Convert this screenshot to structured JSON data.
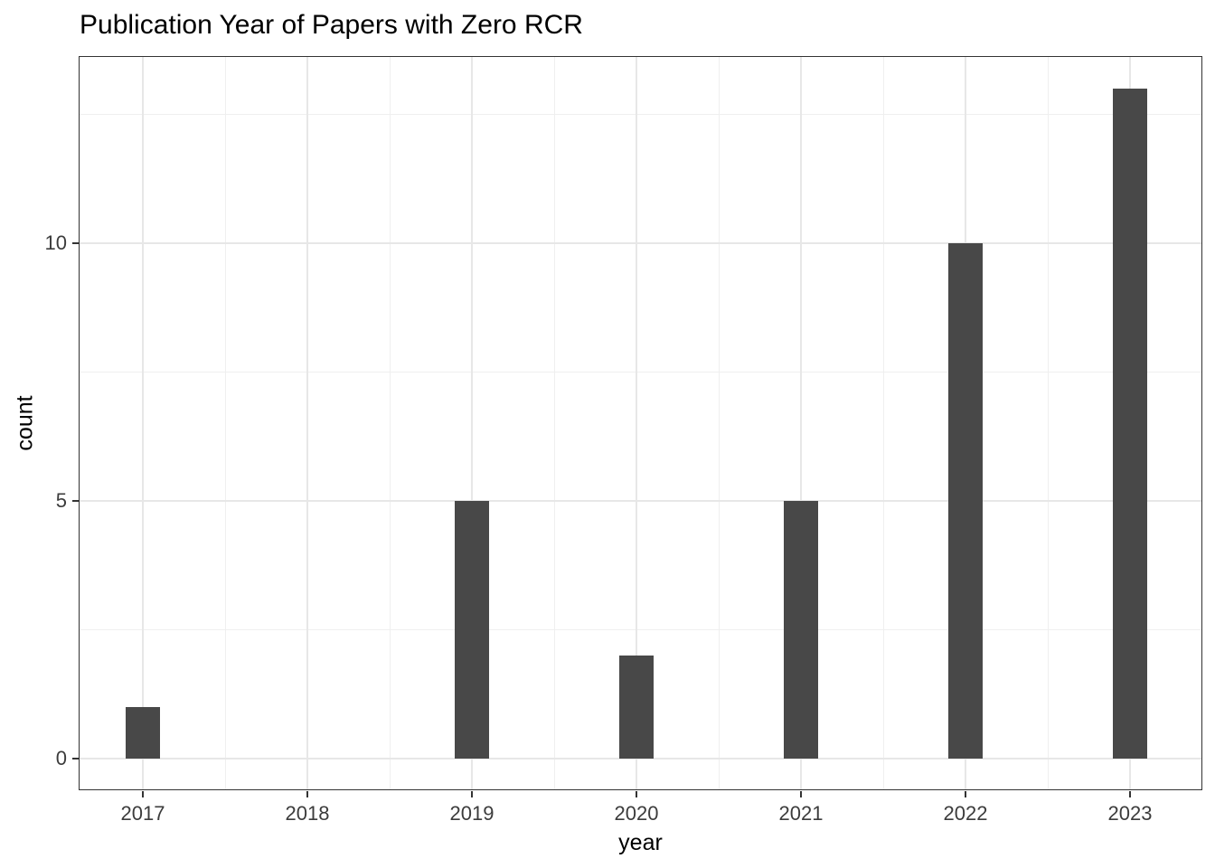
{
  "title": "Publication Year of Papers with Zero RCR",
  "chart_data": {
    "type": "bar",
    "title": "Publication Year of Papers with Zero RCR",
    "xlabel": "year",
    "ylabel": "count",
    "categories": [
      "2017",
      "2018",
      "2019",
      "2020",
      "2021",
      "2022",
      "2023"
    ],
    "values": [
      1,
      0,
      5,
      2,
      5,
      10,
      13
    ],
    "ylim": [
      0,
      13.65
    ],
    "yticks": [
      0,
      5,
      10
    ],
    "ytick_labels": [
      "0",
      "5",
      "10"
    ],
    "yminor": [
      2.5,
      7.5,
      12.5
    ],
    "grid": "major and minor, light gray on white panel",
    "legend_position": "none",
    "colors": {
      "bar_fill": "#484848",
      "grid_major": "#e7e7e7",
      "grid_minor": "#efefef",
      "panel_border": "#333333",
      "tick_text": "#3c3c3c",
      "title_text": "#000000",
      "background": "#ffffff"
    }
  }
}
